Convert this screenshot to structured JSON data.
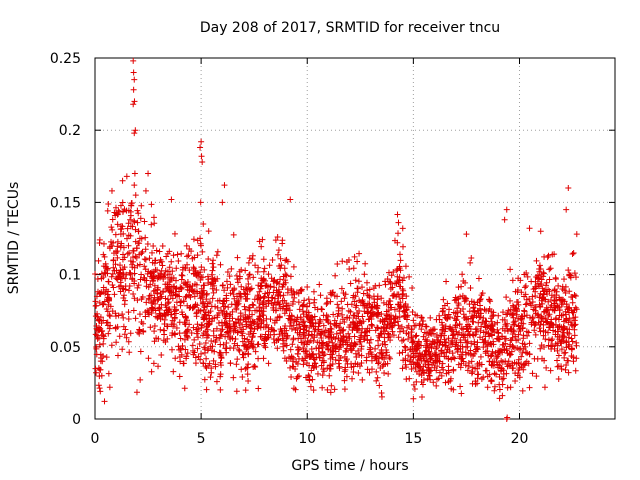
{
  "chart_data": {
    "type": "scatter",
    "title": "Day 208 of 2017, SRMTID for receiver tncu",
    "xlabel": "GPS time / hours",
    "ylabel": "SRMTID / TECUs",
    "xlim": [
      0,
      24.5
    ],
    "ylim": [
      0,
      0.25
    ],
    "xticks": [
      0,
      5,
      10,
      15,
      20
    ],
    "yticks": [
      0,
      0.05,
      0.1,
      0.15,
      0.2,
      0.25
    ],
    "xtick_labels": [
      "0",
      "5",
      "10",
      "15",
      "20"
    ],
    "ytick_labels": [
      "0",
      "0.05",
      "0.1",
      "0.15",
      "0.2",
      "0.25"
    ],
    "grid": true,
    "marker": "plus",
    "marker_color": "#e00000",
    "series": [
      {
        "name": "SRMTID",
        "point_count_approx": 3000,
        "trend": [
          {
            "x": 0.0,
            "y": 0.065,
            "spread": 0.02
          },
          {
            "x": 0.5,
            "y": 0.08,
            "spread": 0.025
          },
          {
            "x": 1.0,
            "y": 0.1,
            "spread": 0.028
          },
          {
            "x": 1.5,
            "y": 0.11,
            "spread": 0.03
          },
          {
            "x": 2.0,
            "y": 0.105,
            "spread": 0.03
          },
          {
            "x": 2.5,
            "y": 0.1,
            "spread": 0.03
          },
          {
            "x": 3.0,
            "y": 0.085,
            "spread": 0.02
          },
          {
            "x": 4.0,
            "y": 0.075,
            "spread": 0.02
          },
          {
            "x": 5.0,
            "y": 0.08,
            "spread": 0.022
          },
          {
            "x": 6.0,
            "y": 0.068,
            "spread": 0.02
          },
          {
            "x": 7.0,
            "y": 0.07,
            "spread": 0.02
          },
          {
            "x": 8.0,
            "y": 0.075,
            "spread": 0.02
          },
          {
            "x": 8.7,
            "y": 0.085,
            "spread": 0.02
          },
          {
            "x": 9.5,
            "y": 0.058,
            "spread": 0.018
          },
          {
            "x": 10.5,
            "y": 0.055,
            "spread": 0.015
          },
          {
            "x": 11.5,
            "y": 0.06,
            "spread": 0.018
          },
          {
            "x": 12.5,
            "y": 0.068,
            "spread": 0.02
          },
          {
            "x": 13.5,
            "y": 0.055,
            "spread": 0.015
          },
          {
            "x": 14.3,
            "y": 0.085,
            "spread": 0.022
          },
          {
            "x": 15.0,
            "y": 0.05,
            "spread": 0.015
          },
          {
            "x": 16.0,
            "y": 0.045,
            "spread": 0.012
          },
          {
            "x": 17.0,
            "y": 0.06,
            "spread": 0.018
          },
          {
            "x": 18.0,
            "y": 0.065,
            "spread": 0.02
          },
          {
            "x": 19.0,
            "y": 0.045,
            "spread": 0.014
          },
          {
            "x": 20.0,
            "y": 0.065,
            "spread": 0.02
          },
          {
            "x": 21.0,
            "y": 0.075,
            "spread": 0.022
          },
          {
            "x": 22.0,
            "y": 0.065,
            "spread": 0.02
          },
          {
            "x": 22.7,
            "y": 0.07,
            "spread": 0.02
          }
        ],
        "highlights": [
          {
            "x": 1.8,
            "y": 0.248
          },
          {
            "x": 1.82,
            "y": 0.24
          },
          {
            "x": 1.85,
            "y": 0.235
          },
          {
            "x": 1.82,
            "y": 0.228
          },
          {
            "x": 1.86,
            "y": 0.22
          },
          {
            "x": 1.8,
            "y": 0.218
          },
          {
            "x": 1.9,
            "y": 0.2
          },
          {
            "x": 1.85,
            "y": 0.198
          },
          {
            "x": 1.88,
            "y": 0.17
          },
          {
            "x": 1.85,
            "y": 0.162
          },
          {
            "x": 1.92,
            "y": 0.155
          },
          {
            "x": 1.7,
            "y": 0.148
          },
          {
            "x": 2.5,
            "y": 0.17
          },
          {
            "x": 2.4,
            "y": 0.158
          },
          {
            "x": 1.3,
            "y": 0.165
          },
          {
            "x": 1.5,
            "y": 0.168
          },
          {
            "x": 0.8,
            "y": 0.158
          },
          {
            "x": 5.0,
            "y": 0.192
          },
          {
            "x": 4.95,
            "y": 0.188
          },
          {
            "x": 5.02,
            "y": 0.182
          },
          {
            "x": 5.05,
            "y": 0.178
          },
          {
            "x": 4.98,
            "y": 0.15
          },
          {
            "x": 5.1,
            "y": 0.135
          },
          {
            "x": 6.1,
            "y": 0.162
          },
          {
            "x": 6.0,
            "y": 0.15
          },
          {
            "x": 3.6,
            "y": 0.152
          },
          {
            "x": 9.2,
            "y": 0.152
          },
          {
            "x": 14.3,
            "y": 0.136
          },
          {
            "x": 14.5,
            "y": 0.132
          },
          {
            "x": 17.5,
            "y": 0.128
          },
          {
            "x": 19.4,
            "y": 0.145
          },
          {
            "x": 19.3,
            "y": 0.138
          },
          {
            "x": 21.0,
            "y": 0.13
          },
          {
            "x": 22.3,
            "y": 0.16
          },
          {
            "x": 22.2,
            "y": 0.145
          },
          {
            "x": 22.7,
            "y": 0.128
          },
          {
            "x": 0.7,
            "y": 0.022
          },
          {
            "x": 7.1,
            "y": 0.02
          },
          {
            "x": 15.0,
            "y": 0.014
          },
          {
            "x": 10.3,
            "y": 0.02
          },
          {
            "x": 13.5,
            "y": 0.018
          },
          {
            "x": 18.5,
            "y": 0.022
          },
          {
            "x": 21.2,
            "y": 0.022
          },
          {
            "x": 0.05,
            "y": 0.032
          },
          {
            "x": 19.4,
            "y": 0.0
          },
          {
            "x": 19.42,
            "y": 0.001
          }
        ]
      }
    ]
  }
}
